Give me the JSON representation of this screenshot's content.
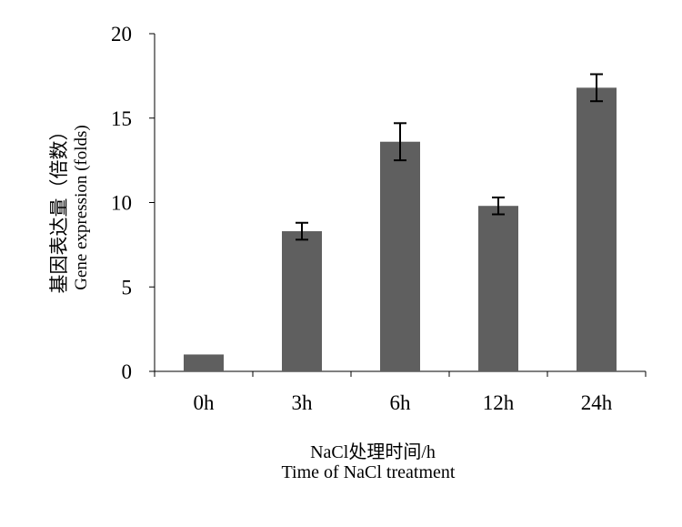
{
  "chart_data": {
    "type": "bar",
    "categories": [
      "0h",
      "3h",
      "6h",
      "12h",
      "24h"
    ],
    "values": [
      1.0,
      8.3,
      13.6,
      9.8,
      16.8
    ],
    "errors": [
      0,
      0.5,
      1.1,
      0.5,
      0.8
    ],
    "ylim": [
      0,
      20
    ],
    "yticks": [
      "0",
      "5",
      "10",
      "15",
      "20"
    ],
    "ylabel_cn": "基因表达量（倍数）",
    "ylabel_en": "Gene expression (folds)",
    "xlabel_cn": "NaCl处理时间/h",
    "xlabel_en": "Time of  NaCl treatment",
    "grid": false,
    "bar_color": "#5f5f5f"
  }
}
